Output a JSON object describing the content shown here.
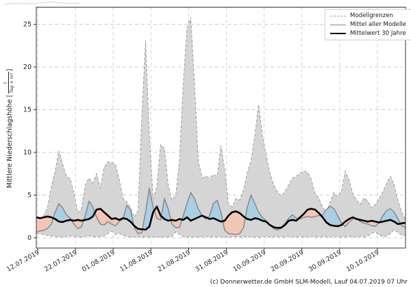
{
  "figure": {
    "caption": "(c) Donnerwetter.de GmbH SLM-Modell, Lauf 04.07.2019 07 Uhr",
    "ylabel": {
      "text": "Mittlere Niederschlagshöhe",
      "bracket_open": "[",
      "unit_numerator": "l",
      "unit_denominator": "Tag × m²",
      "bracket_close": "]"
    }
  },
  "legend": {
    "items": [
      {
        "label": "Modellgrenzen",
        "style": "dashed-gray"
      },
      {
        "label": "Mittel aller Modelle",
        "style": "solid-gray"
      },
      {
        "label": "Mittelwert 30 Jahre",
        "style": "solid-black"
      }
    ]
  },
  "colors": {
    "band_fill": "#d5d5d5",
    "band_edge": "#9a9a9a",
    "above_mean_fill": "#a9cfe5",
    "below_mean_fill": "#f4c6b6",
    "model_mean_line": "#878787",
    "mean30_line": "#000000",
    "grid": "#cccccc",
    "spine": "#333333",
    "tick_label": "#222222"
  },
  "chart_data": {
    "type": "line",
    "title": "",
    "xlabel": "",
    "ylabel": "Mittlere Niederschlagshöhe [l/(Tag × m²)]",
    "grid": true,
    "legend_position": "upper right",
    "x_axis": {
      "tick_labels": [
        "12.07.2019",
        "22.07.2019",
        "01.08.2019",
        "11.08.2019",
        "21.08.2019",
        "31.08.2019",
        "10.09.2019",
        "20.09.2019",
        "30.09.2019",
        "10.10.2019"
      ],
      "tick_days": [
        0.36,
        10.38,
        20.4,
        30.42,
        40.44,
        50.45,
        60.47,
        70.49,
        80.51,
        90.53
      ],
      "rotation_deg": 30
    },
    "y_axis": {
      "ticks": [
        0,
        5,
        10,
        15,
        20,
        25
      ],
      "range": [
        -1.2,
        27
      ]
    },
    "days_total": 98,
    "series": [
      {
        "name": "Modellgrenzen (obere Grenze)",
        "role": "upper",
        "values": [
          1.8,
          2.3,
          2.6,
          3.6,
          6.0,
          7.8,
          10.2,
          8.6,
          7.2,
          6.9,
          5.2,
          2.9,
          3.4,
          6.2,
          7.0,
          6.4,
          7.5,
          5.8,
          8.2,
          8.9,
          8.8,
          8.6,
          6.9,
          4.6,
          4.2,
          3.5,
          2.4,
          3.2,
          14.0,
          23.1,
          12.0,
          4.6,
          6.0,
          10.9,
          10.5,
          6.2,
          4.4,
          5.0,
          9.0,
          18.0,
          24.5,
          25.8,
          18.0,
          9.0,
          7.0,
          7.2,
          7.0,
          7.4,
          7.2,
          10.8,
          8.0,
          4.0,
          3.6,
          4.6,
          4.4,
          5.6,
          7.6,
          9.0,
          12.0,
          15.6,
          12.0,
          9.7,
          7.6,
          6.2,
          5.4,
          4.9,
          5.4,
          6.2,
          7.0,
          7.2,
          7.6,
          7.8,
          7.7,
          6.8,
          5.2,
          4.6,
          3.6,
          3.0,
          4.2,
          5.3,
          4.8,
          5.5,
          7.8,
          6.8,
          5.2,
          4.4,
          3.9,
          4.7,
          4.3,
          3.5,
          3.9,
          4.6,
          5.4,
          6.4,
          7.2,
          6.2,
          4.4,
          3.0,
          2.1
        ]
      },
      {
        "name": "Modellgrenzen (untere Grenze)",
        "role": "lower",
        "values": [
          0.55,
          0.45,
          0.35,
          0.25,
          0.2,
          0.15,
          0.1,
          0.1,
          0.15,
          0.2,
          0.15,
          0.1,
          0.1,
          0.15,
          0.2,
          0.15,
          0.1,
          0.15,
          0.2,
          0.5,
          0.8,
          0.4,
          0.5,
          0.3,
          0.15,
          0.1,
          0.1,
          0.1,
          0.1,
          0.1,
          0.1,
          0.1,
          0.1,
          0.1,
          0.1,
          0.1,
          0.15,
          0.7,
          0.4,
          0.1,
          0.1,
          0.1,
          0.1,
          0.1,
          0.1,
          0.15,
          0.1,
          0.1,
          0.15,
          0.1,
          0.1,
          0.1,
          0.1,
          0.15,
          0.1,
          0.1,
          0.15,
          0.1,
          0.1,
          0.1,
          0.1,
          0.15,
          0.1,
          0.1,
          0.15,
          0.1,
          0.1,
          0.15,
          0.1,
          0.1,
          0.15,
          0.1,
          0.1,
          0.15,
          0.1,
          0.1,
          0.15,
          0.1,
          0.1,
          0.15,
          0.1,
          0.1,
          0.1,
          0.15,
          0.1,
          0.1,
          0.15,
          0.1,
          0.2,
          0.5,
          0.7,
          0.3,
          0.15,
          0.2,
          0.5,
          1.0,
          0.6,
          0.3,
          0.25
        ]
      },
      {
        "name": "Mittel aller Modelle",
        "role": "model_mean",
        "values": [
          0.7,
          0.8,
          0.9,
          1.1,
          1.6,
          3.0,
          4.0,
          3.5,
          2.7,
          2.3,
          1.6,
          1.1,
          1.3,
          2.6,
          4.3,
          3.6,
          2.4,
          1.6,
          1.5,
          1.9,
          1.6,
          1.4,
          1.9,
          2.2,
          3.8,
          3.3,
          1.2,
          0.5,
          0.6,
          3.0,
          5.8,
          3.6,
          2.3,
          2.1,
          4.6,
          3.4,
          1.6,
          1.2,
          1.2,
          2.6,
          4.0,
          5.3,
          4.6,
          3.4,
          2.55,
          2.2,
          2.6,
          4.0,
          4.4,
          3.0,
          0.9,
          0.5,
          0.45,
          0.4,
          0.5,
          1.2,
          3.6,
          5.0,
          4.0,
          3.0,
          2.4,
          2.0,
          1.5,
          1.1,
          0.9,
          1.1,
          1.7,
          2.3,
          2.7,
          2.3,
          2.2,
          2.4,
          2.5,
          2.4,
          2.5,
          2.6,
          2.7,
          3.3,
          3.7,
          3.4,
          2.6,
          1.7,
          1.3,
          1.8,
          2.2,
          2.3,
          1.9,
          1.7,
          1.6,
          1.4,
          1.35,
          1.8,
          2.6,
          3.2,
          3.4,
          3.0,
          2.2,
          1.4,
          1.2
        ]
      },
      {
        "name": "Mittelwert 30 Jahre",
        "role": "mean30",
        "values": [
          2.4,
          2.3,
          2.4,
          2.5,
          2.4,
          2.2,
          1.9,
          1.85,
          2.0,
          2.1,
          2.0,
          2.1,
          2.0,
          2.1,
          2.2,
          2.5,
          3.3,
          3.4,
          3.0,
          2.6,
          2.2,
          2.3,
          2.1,
          2.3,
          2.2,
          1.9,
          1.4,
          1.05,
          1.0,
          0.95,
          1.3,
          3.0,
          3.65,
          2.6,
          2.2,
          2.0,
          2.1,
          2.0,
          2.2,
          2.1,
          2.4,
          2.0,
          2.2,
          2.4,
          2.6,
          2.4,
          2.2,
          2.3,
          2.1,
          1.9,
          2.0,
          2.6,
          3.0,
          3.1,
          2.9,
          2.5,
          2.2,
          2.1,
          2.3,
          2.2,
          2.0,
          1.9,
          1.5,
          1.25,
          1.15,
          1.2,
          1.5,
          2.0,
          2.1,
          2.0,
          2.4,
          2.8,
          3.3,
          3.4,
          3.3,
          2.9,
          2.4,
          1.8,
          1.5,
          1.4,
          1.35,
          1.5,
          1.9,
          2.2,
          2.4,
          2.2,
          2.1,
          2.0,
          1.9,
          2.0,
          1.9,
          1.8,
          1.9,
          2.0,
          2.1,
          1.9,
          1.6,
          1.7,
          1.75
        ]
      }
    ]
  }
}
